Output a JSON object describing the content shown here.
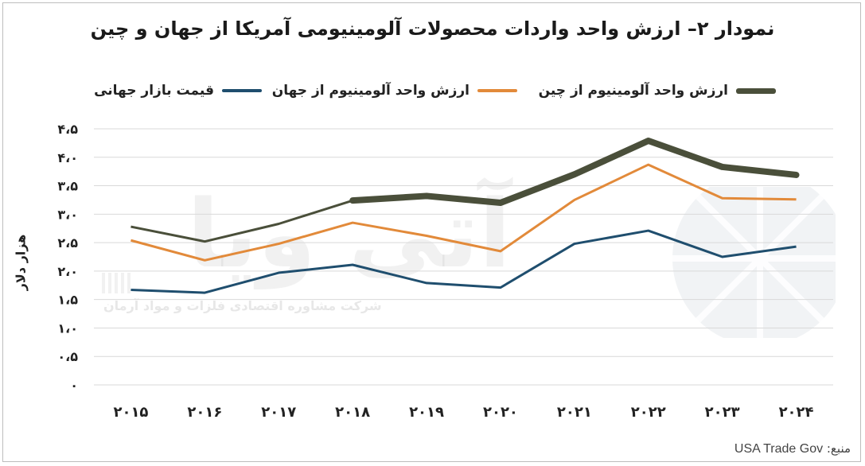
{
  "title": "نمودار ۲– ارزش واحد واردات محصولات آلومینیومی آمریکا از جهان و چین",
  "legend": {
    "world_price": "قیمت بازار جهانی",
    "from_world": "ارزش واحد آلومینیوم از جهان",
    "from_china": "ارزش واحد آلومینیوم از چین"
  },
  "colors": {
    "world_price": "#1f4e6e",
    "from_world": "#e28a3a",
    "from_china": "#4a4f3a",
    "grid": "#d9d9d9"
  },
  "source": {
    "label": "منبع:",
    "value": "USA Trade Gov"
  },
  "watermark": {
    "brand": "آتی ویا",
    "tagline": "شرکت مشاوره اقتصادی فلزات و مواد آرمان"
  },
  "chart_data": {
    "type": "line",
    "title": "نمودار ۲– ارزش واحد واردات محصولات آلومینیومی آمریکا از جهان و چین",
    "xlabel": "",
    "ylabel": "هزار دلار",
    "categories": [
      "۲۰۱۵",
      "۲۰۱۶",
      "۲۰۱۷",
      "۲۰۱۸",
      "۲۰۱۹",
      "۲۰۲۰",
      "۲۰۲۱",
      "۲۰۲۲",
      "۲۰۲۳",
      "۲۰۲۴"
    ],
    "yticks": [
      "۰",
      "۰،۵",
      "۱،۰",
      "۱،۵",
      "۲،۰",
      "۲،۵",
      "۳،۰",
      "۳،۵",
      "۴،۰",
      "۴،۵"
    ],
    "ylim": [
      0,
      4.5
    ],
    "grid": true,
    "legend_position": "top",
    "series": [
      {
        "name": "قیمت بازار جهانی",
        "key": "world_price",
        "values": [
          1.67,
          1.62,
          1.97,
          2.11,
          1.79,
          1.71,
          2.48,
          2.71,
          2.25,
          2.43
        ]
      },
      {
        "name": "ارزش واحد آلومینیوم از جهان",
        "key": "from_world",
        "values": [
          2.54,
          2.19,
          2.48,
          2.85,
          2.62,
          2.35,
          3.25,
          3.87,
          3.28,
          3.26
        ]
      },
      {
        "name": "ارزش واحد آلومینیوم از چین",
        "key": "from_china",
        "values": [
          2.78,
          2.52,
          2.83,
          3.24,
          3.32,
          3.2,
          3.7,
          4.29,
          3.83,
          3.69
        ]
      }
    ]
  }
}
